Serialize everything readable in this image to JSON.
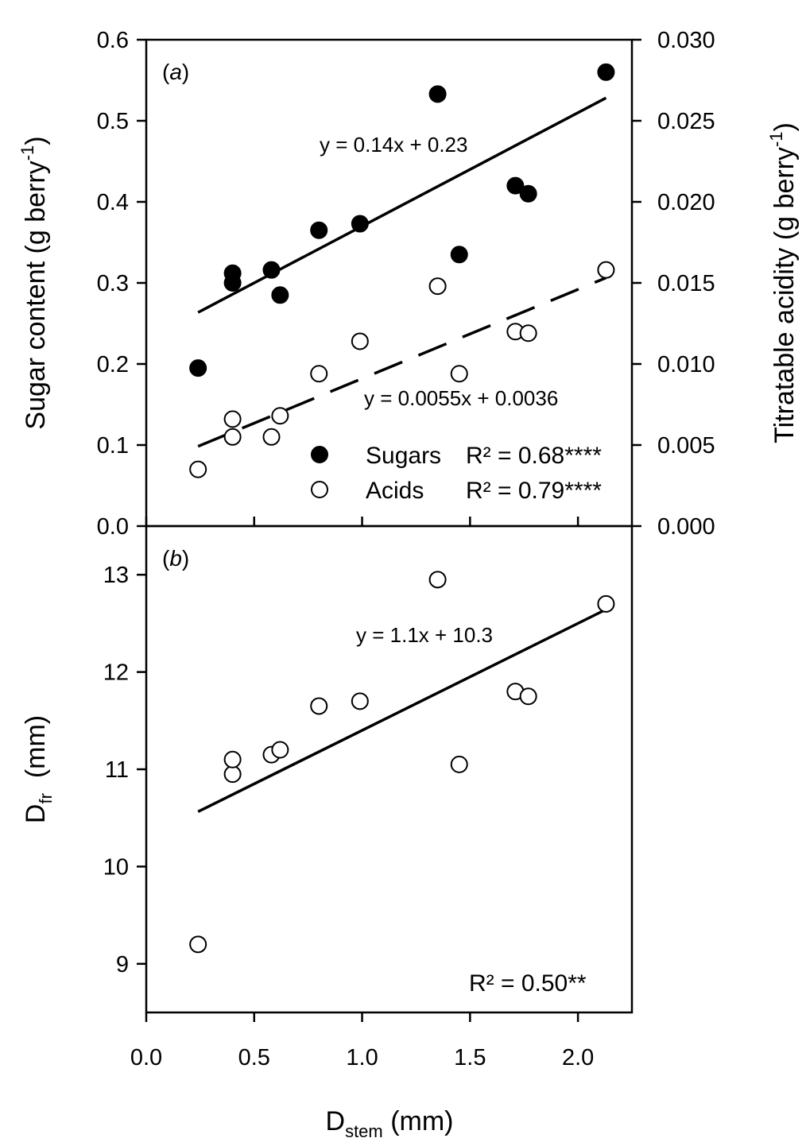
{
  "chart_data": [
    {
      "panel": "a",
      "type": "scatter",
      "panel_label": "a",
      "x_ticks": [
        "0.0",
        "0.5",
        "1.0",
        "1.5",
        "2.0"
      ],
      "xlim": [
        0,
        2.25
      ],
      "ylabel_left": {
        "main": "Sugar content (g berry",
        "sup": "-1",
        "end": ")"
      },
      "ylabel_right": {
        "main": "Titratable acidity (g berry",
        "sup": "-1",
        "end": ")"
      },
      "ylim_left": [
        0,
        0.6
      ],
      "ylim_right": [
        0,
        0.03
      ],
      "y_ticks_left": [
        "0.0",
        "0.1",
        "0.2",
        "0.3",
        "0.4",
        "0.5",
        "0.6"
      ],
      "y_ticks_right": [
        "0.000",
        "0.005",
        "0.010",
        "0.015",
        "0.020",
        "0.025",
        "0.030"
      ],
      "series": [
        {
          "name": "Sugars",
          "axis": "left",
          "marker": "filled-circle",
          "r2": "R² = 0.68****",
          "equation": "y = 0.14x + 0.23",
          "fit": {
            "slope": 0.14,
            "intercept": 0.23,
            "x_range": [
              0.24,
              2.13
            ],
            "style": "solid"
          },
          "points": [
            [
              0.24,
              0.195
            ],
            [
              0.4,
              0.3
            ],
            [
              0.4,
              0.312
            ],
            [
              0.58,
              0.316
            ],
            [
              0.62,
              0.285
            ],
            [
              0.8,
              0.365
            ],
            [
              0.99,
              0.373
            ],
            [
              1.35,
              0.533
            ],
            [
              1.45,
              0.335
            ],
            [
              1.71,
              0.42
            ],
            [
              1.77,
              0.41
            ],
            [
              2.13,
              0.56
            ]
          ]
        },
        {
          "name": "Acids",
          "axis": "right",
          "marker": "open-circle",
          "r2": "R² = 0.79****",
          "equation": "y = 0.0055x + 0.0036",
          "fit": {
            "slope": 0.0055,
            "intercept": 0.0036,
            "x_range": [
              0.24,
              2.13
            ],
            "style": "dashed"
          },
          "points": [
            [
              0.24,
              0.0035
            ],
            [
              0.4,
              0.0055
            ],
            [
              0.4,
              0.0066
            ],
            [
              0.58,
              0.0055
            ],
            [
              0.62,
              0.0068
            ],
            [
              0.8,
              0.0094
            ],
            [
              0.99,
              0.0114
            ],
            [
              1.35,
              0.0148
            ],
            [
              1.45,
              0.0094
            ],
            [
              1.71,
              0.012
            ],
            [
              1.77,
              0.0119
            ],
            [
              2.13,
              0.0158
            ]
          ]
        }
      ]
    },
    {
      "panel": "b",
      "type": "scatter",
      "panel_label": "b",
      "xlabel": {
        "main": "D",
        "sub": "stem",
        "end": " (mm)"
      },
      "x_ticks": [
        "0.0",
        "0.5",
        "1.0",
        "1.5",
        "2.0"
      ],
      "xlim": [
        0,
        2.25
      ],
      "ylabel": {
        "main": "D",
        "sub": "fr",
        "end": "  (mm)"
      },
      "ylim": [
        8.5,
        13.5
      ],
      "y_ticks": [
        "9",
        "10",
        "11",
        "12",
        "13"
      ],
      "series": [
        {
          "marker": "open-circle",
          "equation": "y = 1.1x + 10.3",
          "r2": "R² = 0.50**",
          "fit": {
            "slope": 1.1,
            "intercept": 10.3,
            "x_range": [
              0.24,
              2.13
            ],
            "style": "solid"
          },
          "points": [
            [
              0.24,
              9.2
            ],
            [
              0.4,
              10.95
            ],
            [
              0.4,
              11.1
            ],
            [
              0.58,
              11.15
            ],
            [
              0.62,
              11.2
            ],
            [
              0.8,
              11.65
            ],
            [
              0.99,
              11.7
            ],
            [
              1.35,
              12.95
            ],
            [
              1.45,
              11.05
            ],
            [
              1.71,
              11.8
            ],
            [
              1.77,
              11.75
            ],
            [
              2.13,
              12.7
            ]
          ]
        }
      ]
    }
  ]
}
